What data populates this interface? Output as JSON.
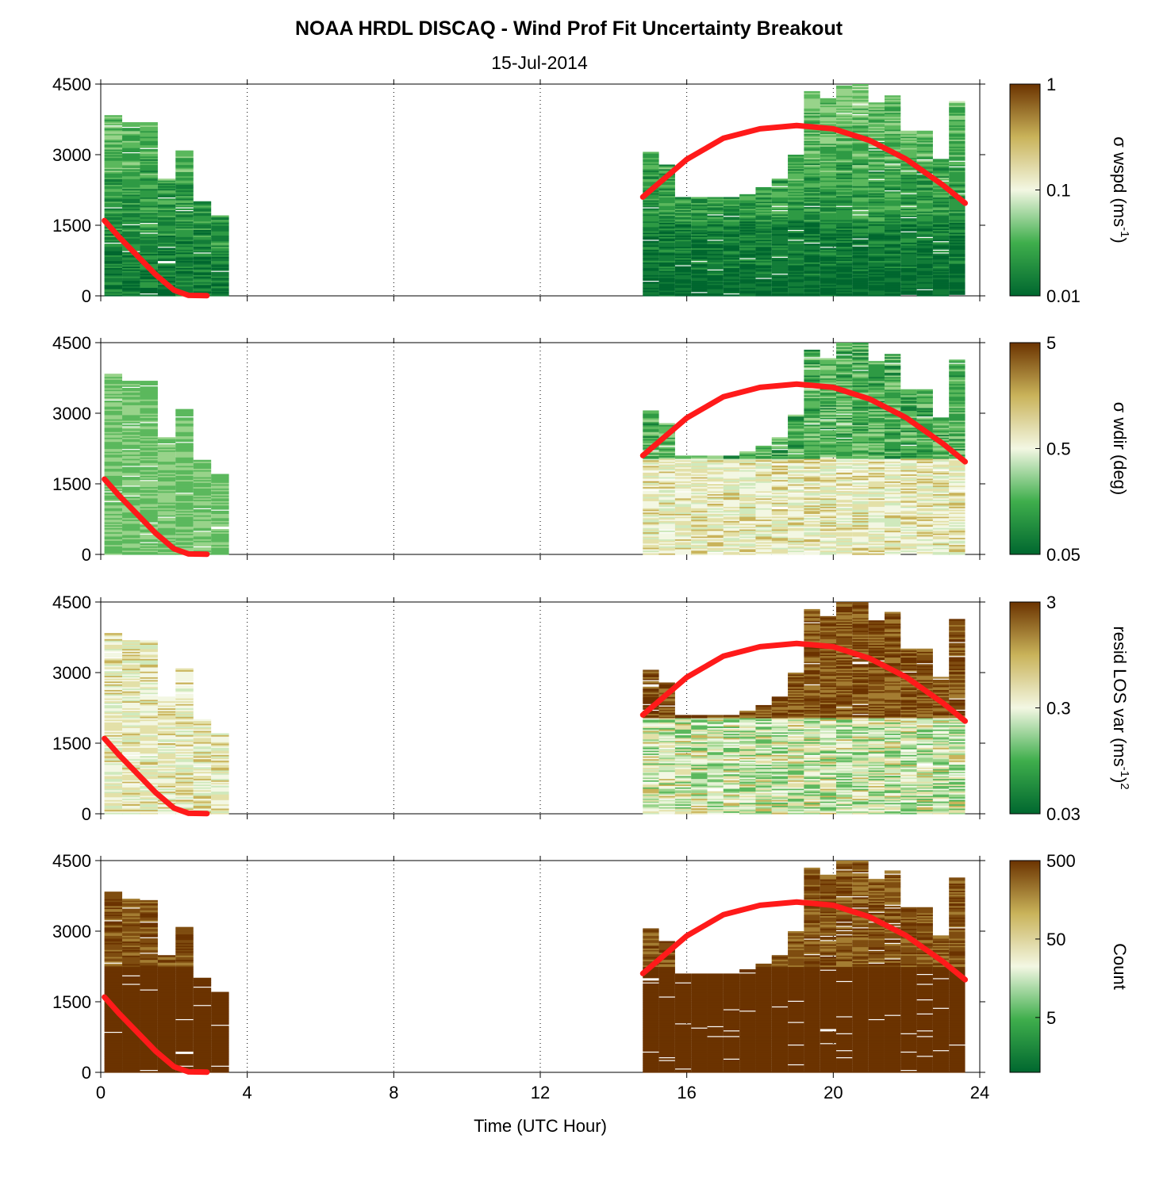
{
  "figure": {
    "title": "NOAA HRDL DISCAQ - Wind Prof Fit Uncertainty Breakout",
    "subtitle": "15-Jul-2014",
    "xlabel": "Time (UTC Hour)"
  },
  "colors": {
    "dark_green": "#00672f",
    "mid_green": "#3fae4c",
    "pale": "#f3f7e3",
    "tan": "#c9b35a",
    "dark_brown": "#6b3300",
    "boundary_line": "#ff1a1a"
  },
  "chart_data": [
    {
      "type": "heatmap",
      "panel": 1,
      "x_ticks": [
        "0",
        "4",
        "8",
        "12",
        "16",
        "20",
        "24"
      ],
      "xlim": [
        0,
        24
      ],
      "y_ticks": [
        "0",
        "1500",
        "3000",
        "4500"
      ],
      "ylim": [
        0,
        4500
      ],
      "colorbar_label_main": "σ wspd (ms",
      "colorbar_label_sup": "-1",
      "colorbar_label_end": ")",
      "colorbar_ticks": [
        "1",
        "0.1",
        "0.01"
      ],
      "scale": "log",
      "colorbar_range": [
        0.01,
        1
      ],
      "profiles_a": {
        "x_start": 0.1,
        "x_end": 3.5,
        "tops": [
          3850,
          3700,
          3700,
          2500,
          3100,
          2000,
          1700
        ]
      },
      "profiles_b": {
        "x_start": 14.8,
        "x_end": 23.6,
        "tops": [
          3050,
          2800,
          2100,
          2100,
          2100,
          2100,
          2200,
          2300,
          2500,
          3000,
          4350,
          4200,
          4500,
          4500,
          4100,
          4300,
          3500,
          3500,
          2900,
          4150
        ]
      },
      "level": "low (green dominant)",
      "boundary_layer_a": {
        "x": [
          0.1,
          0.5,
          1.0,
          1.5,
          2.0,
          2.4,
          2.9
        ],
        "y": [
          1600,
          1250,
          850,
          450,
          120,
          10,
          5
        ]
      },
      "boundary_layer_b": {
        "x": [
          14.8,
          16.0,
          17.0,
          18.0,
          19.0,
          20.0,
          21.0,
          22.0,
          23.0,
          23.6
        ],
        "y": [
          2100,
          2900,
          3350,
          3550,
          3620,
          3550,
          3300,
          2900,
          2350,
          1970
        ]
      }
    },
    {
      "type": "heatmap",
      "panel": 2,
      "x_ticks": [
        "0",
        "4",
        "8",
        "12",
        "16",
        "20",
        "24"
      ],
      "xlim": [
        0,
        24
      ],
      "y_ticks": [
        "0",
        "1500",
        "3000",
        "4500"
      ],
      "ylim": [
        0,
        4500
      ],
      "colorbar_label_main": "σ wdir (deg)",
      "colorbar_ticks": [
        "5",
        "0.5",
        "0.05"
      ],
      "scale": "log",
      "colorbar_range": [
        0.05,
        5
      ],
      "profiles_a": {
        "x_start": 0.1,
        "x_end": 3.5,
        "tops": [
          3850,
          3700,
          3700,
          2500,
          3100,
          2000,
          1700
        ]
      },
      "profiles_b": {
        "x_start": 14.8,
        "x_end": 23.6,
        "tops": [
          3050,
          2800,
          2100,
          2100,
          2100,
          2100,
          2200,
          2300,
          2500,
          3000,
          4350,
          4200,
          4500,
          4500,
          4100,
          4300,
          3500,
          3500,
          2900,
          4150
        ]
      },
      "level": "mixed, pale near surface in afternoon",
      "boundary_layer_a": {
        "x": [
          0.1,
          0.5,
          1.0,
          1.5,
          2.0,
          2.4,
          2.9
        ],
        "y": [
          1600,
          1250,
          850,
          450,
          120,
          10,
          5
        ]
      },
      "boundary_layer_b": {
        "x": [
          14.8,
          16.0,
          17.0,
          18.0,
          19.0,
          20.0,
          21.0,
          22.0,
          23.0,
          23.6
        ],
        "y": [
          2100,
          2900,
          3350,
          3550,
          3620,
          3550,
          3300,
          2900,
          2350,
          1970
        ]
      }
    },
    {
      "type": "heatmap",
      "panel": 3,
      "x_ticks": [
        "0",
        "4",
        "8",
        "12",
        "16",
        "20",
        "24"
      ],
      "xlim": [
        0,
        24
      ],
      "y_ticks": [
        "0",
        "1500",
        "3000",
        "4500"
      ],
      "ylim": [
        0,
        4500
      ],
      "colorbar_label_main": "resid LOS var (ms",
      "colorbar_label_sup": "-1",
      "colorbar_label_end": ")",
      "colorbar_label_sup2": "2",
      "colorbar_ticks": [
        "3",
        "0.3",
        "0.03"
      ],
      "scale": "log",
      "colorbar_range": [
        0.03,
        3
      ],
      "profiles_a": {
        "x_start": 0.1,
        "x_end": 3.5,
        "tops": [
          3850,
          3700,
          3700,
          2500,
          3100,
          2000,
          1700
        ]
      },
      "profiles_b": {
        "x_start": 14.8,
        "x_end": 23.6,
        "tops": [
          3050,
          2800,
          2100,
          2100,
          2100,
          2100,
          2200,
          2300,
          2500,
          3000,
          4350,
          4200,
          4500,
          4500,
          4100,
          4300,
          3500,
          3500,
          2900,
          4150
        ]
      },
      "level": "high aloft (brown), pale/green near surface",
      "boundary_layer_a": {
        "x": [
          0.1,
          0.5,
          1.0,
          1.5,
          2.0,
          2.4,
          2.9
        ],
        "y": [
          1600,
          1250,
          850,
          450,
          120,
          10,
          5
        ]
      },
      "boundary_layer_b": {
        "x": [
          14.8,
          16.0,
          17.0,
          18.0,
          19.0,
          20.0,
          21.0,
          22.0,
          23.0,
          23.6
        ],
        "y": [
          2100,
          2900,
          3350,
          3550,
          3620,
          3550,
          3300,
          2900,
          2350,
          1970
        ]
      }
    },
    {
      "type": "heatmap",
      "panel": 4,
      "x_ticks": [
        "0",
        "4",
        "8",
        "12",
        "16",
        "20",
        "24"
      ],
      "xlim": [
        0,
        24
      ],
      "y_ticks": [
        "0",
        "1500",
        "3000",
        "4500"
      ],
      "ylim": [
        0,
        4500
      ],
      "colorbar_label_main": "Count",
      "colorbar_ticks": [
        "500",
        "50",
        "5"
      ],
      "scale": "log",
      "colorbar_range": [
        1,
        500
      ],
      "profiles_a": {
        "x_start": 0.1,
        "x_end": 3.5,
        "tops": [
          3850,
          3700,
          3700,
          2500,
          3100,
          2000,
          1700
        ]
      },
      "profiles_b": {
        "x_start": 14.8,
        "x_end": 23.6,
        "tops": [
          3050,
          2800,
          2100,
          2100,
          2100,
          2100,
          2200,
          2300,
          2500,
          3000,
          4350,
          4200,
          4500,
          4500,
          4100,
          4300,
          3500,
          3500,
          2900,
          4150
        ]
      },
      "level": "high (brown dominant)",
      "boundary_layer_a": {
        "x": [
          0.1,
          0.5,
          1.0,
          1.5,
          2.0,
          2.4,
          2.9
        ],
        "y": [
          1600,
          1250,
          850,
          450,
          120,
          10,
          5
        ]
      },
      "boundary_layer_b": {
        "x": [
          14.8,
          16.0,
          17.0,
          18.0,
          19.0,
          20.0,
          21.0,
          22.0,
          23.0,
          23.6
        ],
        "y": [
          2100,
          2900,
          3350,
          3550,
          3620,
          3550,
          3300,
          2900,
          2350,
          1970
        ]
      }
    }
  ]
}
